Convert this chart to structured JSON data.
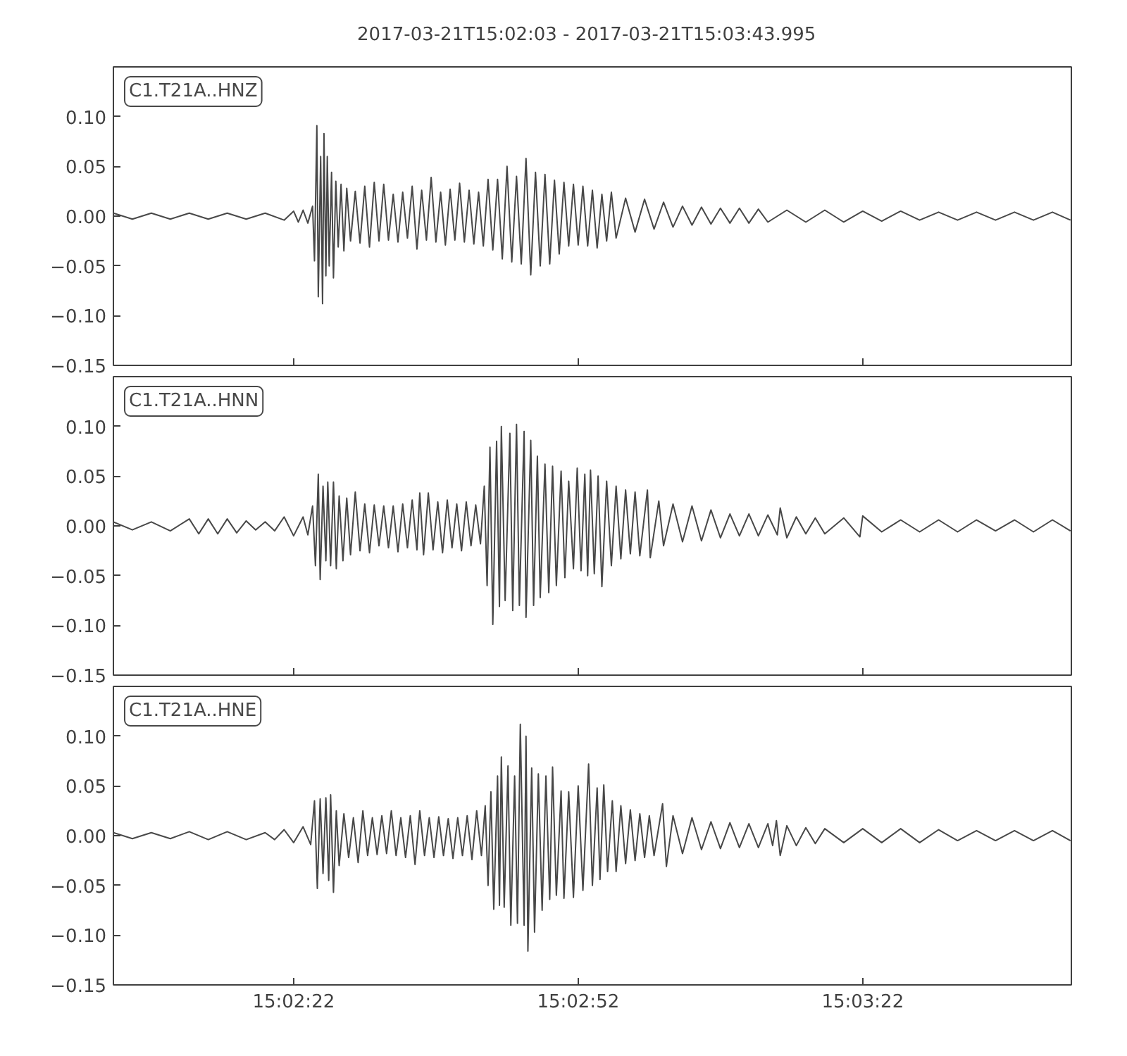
{
  "chart_data": [
    {
      "type": "line",
      "title": "2017-03-21T15:02:03  -  2017-03-21T15:03:43.995",
      "xlim": [
        "2017-03-21T15:02:03",
        "2017-03-21T15:03:43.995"
      ],
      "xticks": [
        {
          "value": "2017-03-21T15:02:22",
          "label": null
        },
        {
          "value": "2017-03-21T15:02:52",
          "label": null
        },
        {
          "value": "2017-03-21T15:03:22",
          "label": null
        }
      ],
      "ylim": [
        -0.15,
        0.15
      ],
      "yticks": [
        {
          "value": -0.15,
          "label": "−0.15"
        },
        {
          "value": -0.1,
          "label": "−0.10"
        },
        {
          "value": -0.05,
          "label": "−0.05"
        },
        {
          "value": 0,
          "label": "0.00"
        },
        {
          "value": 0.05,
          "label": "0.05"
        },
        {
          "value": 0.1,
          "label": "0.10"
        }
      ],
      "tick_labels": "y",
      "series": [
        {
          "name": "C1.T21A..HNZ",
          "color": "#484848",
          "x": [
            "2017-03-21T15:02:03",
            "2017-03-21T15:02:05",
            "2017-03-21T15:02:07",
            "2017-03-21T15:02:09",
            "2017-03-21T15:02:11",
            "2017-03-21T15:02:13",
            "2017-03-21T15:02:15",
            "2017-03-21T15:02:17",
            "2017-03-21T15:02:19",
            "2017-03-21T15:02:21",
            "2017-03-21T15:02:22",
            "2017-03-21T15:02:22.5",
            "2017-03-21T15:02:23",
            "2017-03-21T15:02:23.5",
            "2017-03-21T15:02:24",
            "2017-03-21T15:02:24.2",
            "2017-03-21T15:02:24.45",
            "2017-03-21T15:02:24.6",
            "2017-03-21T15:02:24.85",
            "2017-03-21T15:02:25.05",
            "2017-03-21T15:02:25.2",
            "2017-03-21T15:02:25.4",
            "2017-03-21T15:02:25.55",
            "2017-03-21T15:02:25.75",
            "2017-03-21T15:02:26",
            "2017-03-21T15:02:26.2",
            "2017-03-21T15:02:26.45",
            "2017-03-21T15:02:26.7",
            "2017-03-21T15:02:27",
            "2017-03-21T15:02:27.3",
            "2017-03-21T15:02:27.6",
            "2017-03-21T15:02:28",
            "2017-03-21T15:02:28.5",
            "2017-03-21T15:02:29",
            "2017-03-21T15:02:29.5",
            "2017-03-21T15:02:30",
            "2017-03-21T15:02:30.5",
            "2017-03-21T15:02:31",
            "2017-03-21T15:02:31.5",
            "2017-03-21T15:02:32",
            "2017-03-21T15:02:32.5",
            "2017-03-21T15:02:33",
            "2017-03-21T15:02:33.5",
            "2017-03-21T15:02:34",
            "2017-03-21T15:02:34.5",
            "2017-03-21T15:02:35",
            "2017-03-21T15:02:35.5",
            "2017-03-21T15:02:36",
            "2017-03-21T15:02:36.5",
            "2017-03-21T15:02:37",
            "2017-03-21T15:02:37.5",
            "2017-03-21T15:02:38",
            "2017-03-21T15:02:38.5",
            "2017-03-21T15:02:39",
            "2017-03-21T15:02:39.5",
            "2017-03-21T15:02:40",
            "2017-03-21T15:02:40.5",
            "2017-03-21T15:02:41",
            "2017-03-21T15:02:41.5",
            "2017-03-21T15:02:42",
            "2017-03-21T15:02:42.5",
            "2017-03-21T15:02:43",
            "2017-03-21T15:02:43.5",
            "2017-03-21T15:02:44",
            "2017-03-21T15:02:44.5",
            "2017-03-21T15:02:45",
            "2017-03-21T15:02:45.5",
            "2017-03-21T15:02:46",
            "2017-03-21T15:02:46.5",
            "2017-03-21T15:02:47",
            "2017-03-21T15:02:47.5",
            "2017-03-21T15:02:48",
            "2017-03-21T15:02:48.5",
            "2017-03-21T15:02:49",
            "2017-03-21T15:02:49.5",
            "2017-03-21T15:02:50",
            "2017-03-21T15:02:50.5",
            "2017-03-21T15:02:51",
            "2017-03-21T15:02:51.5",
            "2017-03-21T15:02:52",
            "2017-03-21T15:02:52.5",
            "2017-03-21T15:02:53",
            "2017-03-21T15:02:53.5",
            "2017-03-21T15:02:54",
            "2017-03-21T15:02:54.5",
            "2017-03-21T15:02:55",
            "2017-03-21T15:02:55.5",
            "2017-03-21T15:02:56",
            "2017-03-21T15:02:57",
            "2017-03-21T15:02:58",
            "2017-03-21T15:02:59",
            "2017-03-21T15:03:00",
            "2017-03-21T15:03:01",
            "2017-03-21T15:03:02",
            "2017-03-21T15:03:03",
            "2017-03-21T15:03:04",
            "2017-03-21T15:03:05",
            "2017-03-21T15:03:06",
            "2017-03-21T15:03:07",
            "2017-03-21T15:03:08",
            "2017-03-21T15:03:09",
            "2017-03-21T15:03:10",
            "2017-03-21T15:03:11",
            "2017-03-21T15:03:12",
            "2017-03-21T15:03:14",
            "2017-03-21T15:03:16",
            "2017-03-21T15:03:18",
            "2017-03-21T15:03:20",
            "2017-03-21T15:03:22",
            "2017-03-21T15:03:24",
            "2017-03-21T15:03:26",
            "2017-03-21T15:03:28",
            "2017-03-21T15:03:30",
            "2017-03-21T15:03:32",
            "2017-03-21T15:03:34",
            "2017-03-21T15:03:36",
            "2017-03-21T15:03:38",
            "2017-03-21T15:03:40",
            "2017-03-21T15:03:42",
            "2017-03-21T15:03:43.9"
          ],
          "values": [
            0.003,
            -0.003,
            0.003,
            -0.003,
            0.003,
            -0.003,
            0.003,
            -0.003,
            0.003,
            -0.004,
            0.005,
            -0.006,
            0.006,
            -0.007,
            0.01,
            -0.045,
            0.091,
            -0.081,
            0.06,
            -0.088,
            0.083,
            -0.06,
            0.06,
            -0.05,
            0.044,
            -0.062,
            0.035,
            -0.031,
            0.032,
            -0.035,
            0.028,
            -0.025,
            0.025,
            -0.027,
            0.03,
            -0.031,
            0.034,
            -0.025,
            0.032,
            -0.024,
            0.022,
            -0.026,
            0.024,
            -0.022,
            0.03,
            -0.033,
            0.026,
            -0.024,
            0.039,
            -0.026,
            0.024,
            -0.029,
            0.027,
            -0.024,
            0.033,
            -0.026,
            0.026,
            -0.028,
            0.024,
            -0.03,
            0.037,
            -0.034,
            0.037,
            -0.043,
            0.05,
            -0.046,
            0.04,
            -0.048,
            0.058,
            -0.059,
            0.044,
            -0.05,
            0.042,
            -0.048,
            0.036,
            -0.038,
            0.034,
            -0.03,
            0.032,
            -0.029,
            0.03,
            -0.03,
            0.026,
            -0.032,
            0.022,
            -0.025,
            0.024,
            -0.022,
            0.018,
            -0.016,
            0.017,
            -0.013,
            0.014,
            -0.011,
            0.01,
            -0.009,
            0.009,
            -0.008,
            0.008,
            -0.007,
            0.008,
            -0.007,
            0.007,
            -0.006,
            0.006,
            -0.006,
            0.006,
            -0.006,
            0.005,
            -0.005,
            0.005,
            -0.004,
            0.004,
            -0.004,
            0.004,
            -0.004,
            0.004,
            -0.004,
            0.004,
            -0.004
          ]
        }
      ]
    },
    {
      "type": "line",
      "xlim": [
        "2017-03-21T15:02:03",
        "2017-03-21T15:03:43.995"
      ],
      "xticks": [
        {
          "value": "2017-03-21T15:02:22",
          "label": null
        },
        {
          "value": "2017-03-21T15:02:52",
          "label": null
        },
        {
          "value": "2017-03-21T15:03:22",
          "label": null
        }
      ],
      "ylim": [
        -0.15,
        0.15
      ],
      "yticks": [
        {
          "value": -0.15,
          "label": "−0.15"
        },
        {
          "value": -0.1,
          "label": "−0.10"
        },
        {
          "value": -0.05,
          "label": "−0.05"
        },
        {
          "value": 0,
          "label": "0.00"
        },
        {
          "value": 0.05,
          "label": "0.05"
        },
        {
          "value": 0.1,
          "label": "0.10"
        }
      ],
      "tick_labels": "y",
      "series": [
        {
          "name": "C1.T21A..HNN",
          "color": "#484848",
          "x": [
            "2017-03-21T15:02:03",
            "2017-03-21T15:02:05",
            "2017-03-21T15:02:07",
            "2017-03-21T15:02:09",
            "2017-03-21T15:02:11",
            "2017-03-21T15:02:12",
            "2017-03-21T15:02:13",
            "2017-03-21T15:02:14",
            "2017-03-21T15:02:15",
            "2017-03-21T15:02:16",
            "2017-03-21T15:02:17",
            "2017-03-21T15:02:18",
            "2017-03-21T15:02:19",
            "2017-03-21T15:02:20",
            "2017-03-21T15:02:21",
            "2017-03-21T15:02:22",
            "2017-03-21T15:02:23",
            "2017-03-21T15:02:23.5",
            "2017-03-21T15:02:24",
            "2017-03-21T15:02:24.3",
            "2017-03-21T15:02:24.6",
            "2017-03-21T15:02:24.8",
            "2017-03-21T15:02:25.1",
            "2017-03-21T15:02:25.4",
            "2017-03-21T15:02:25.6",
            "2017-03-21T15:02:25.9",
            "2017-03-21T15:02:26.2",
            "2017-03-21T15:02:26.5",
            "2017-03-21T15:02:26.8",
            "2017-03-21T15:02:27.2",
            "2017-03-21T15:02:27.6",
            "2017-03-21T15:02:28",
            "2017-03-21T15:02:28.5",
            "2017-03-21T15:02:29",
            "2017-03-21T15:02:29.5",
            "2017-03-21T15:02:30",
            "2017-03-21T15:02:30.5",
            "2017-03-21T15:02:31",
            "2017-03-21T15:02:31.5",
            "2017-03-21T15:02:32",
            "2017-03-21T15:02:32.5",
            "2017-03-21T15:02:33",
            "2017-03-21T15:02:33.5",
            "2017-03-21T15:02:34",
            "2017-03-21T15:02:34.5",
            "2017-03-21T15:02:35",
            "2017-03-21T15:02:35.3",
            "2017-03-21T15:02:35.7",
            "2017-03-21T15:02:36.2",
            "2017-03-21T15:02:36.7",
            "2017-03-21T15:02:37.2",
            "2017-03-21T15:02:37.7",
            "2017-03-21T15:02:38.2",
            "2017-03-21T15:02:38.7",
            "2017-03-21T15:02:39.2",
            "2017-03-21T15:02:39.7",
            "2017-03-21T15:02:40.2",
            "2017-03-21T15:02:40.7",
            "2017-03-21T15:02:41.2",
            "2017-03-21T15:02:41.7",
            "2017-03-21T15:02:42.1",
            "2017-03-21T15:02:42.4",
            "2017-03-21T15:02:42.7",
            "2017-03-21T15:02:43",
            "2017-03-21T15:02:43.4",
            "2017-03-21T15:02:43.7",
            "2017-03-21T15:02:43.9",
            "2017-03-21T15:02:44.3",
            "2017-03-21T15:02:44.8",
            "2017-03-21T15:02:45.1",
            "2017-03-21T15:02:45.5",
            "2017-03-21T15:02:45.8",
            "2017-03-21T15:02:46.3",
            "2017-03-21T15:02:46.5",
            "2017-03-21T15:02:47",
            "2017-03-21T15:02:47.3",
            "2017-03-21T15:02:47.7",
            "2017-03-21T15:02:48",
            "2017-03-21T15:02:48.5",
            "2017-03-21T15:02:48.9",
            "2017-03-21T15:02:49.3",
            "2017-03-21T15:02:49.7",
            "2017-03-21T15:02:50.2",
            "2017-03-21T15:02:50.6",
            "2017-03-21T15:02:51",
            "2017-03-21T15:02:51.5",
            "2017-03-21T15:02:51.9",
            "2017-03-21T15:02:52.3",
            "2017-03-21T15:02:52.7",
            "2017-03-21T15:02:53",
            "2017-03-21T15:02:53.3",
            "2017-03-21T15:02:53.7",
            "2017-03-21T15:02:54.1",
            "2017-03-21T15:02:54.5",
            "2017-03-21T15:02:55",
            "2017-03-21T15:02:55.5",
            "2017-03-21T15:02:56",
            "2017-03-21T15:02:56.5",
            "2017-03-21T15:02:57",
            "2017-03-21T15:02:57.5",
            "2017-03-21T15:02:58",
            "2017-03-21T15:02:58.5",
            "2017-03-21T15:02:59.3",
            "2017-03-21T15:02:59.6",
            "2017-03-21T15:03:00.5",
            "2017-03-21T15:03:01",
            "2017-03-21T15:03:02",
            "2017-03-21T15:03:03",
            "2017-03-21T15:03:04",
            "2017-03-21T15:03:05",
            "2017-03-21T15:03:06",
            "2017-03-21T15:03:07",
            "2017-03-21T15:03:08",
            "2017-03-21T15:03:09",
            "2017-03-21T15:03:10",
            "2017-03-21T15:03:11",
            "2017-03-21T15:03:12",
            "2017-03-21T15:03:13",
            "2017-03-21T15:03:13.3",
            "2017-03-21T15:03:14",
            "2017-03-21T15:03:15",
            "2017-03-21T15:03:16",
            "2017-03-21T15:03:17",
            "2017-03-21T15:03:18",
            "2017-03-21T15:03:20",
            "2017-03-21T15:03:21.7",
            "2017-03-21T15:03:22",
            "2017-03-21T15:03:24",
            "2017-03-21T15:03:26",
            "2017-03-21T15:03:28",
            "2017-03-21T15:03:30",
            "2017-03-21T15:03:32",
            "2017-03-21T15:03:34",
            "2017-03-21T15:03:36",
            "2017-03-21T15:03:38",
            "2017-03-21T15:03:40",
            "2017-03-21T15:03:42",
            "2017-03-21T15:03:43.9"
          ],
          "values": [
            0.004,
            -0.004,
            0.004,
            -0.005,
            0.007,
            -0.008,
            0.007,
            -0.008,
            0.007,
            -0.007,
            0.005,
            -0.004,
            0.004,
            -0.005,
            0.009,
            -0.01,
            0.009,
            -0.009,
            0.02,
            -0.04,
            0.052,
            -0.054,
            0.04,
            -0.035,
            0.044,
            -0.04,
            0.044,
            -0.043,
            0.03,
            -0.035,
            0.028,
            -0.029,
            0.034,
            -0.025,
            0.022,
            -0.027,
            0.021,
            -0.02,
            0.02,
            -0.022,
            0.02,
            -0.026,
            0.022,
            -0.022,
            0.026,
            -0.024,
            0.033,
            -0.029,
            0.033,
            -0.024,
            0.024,
            -0.027,
            0.026,
            -0.022,
            0.022,
            -0.025,
            0.024,
            -0.02,
            0.021,
            -0.018,
            0.04,
            -0.06,
            0.079,
            -0.099,
            0.085,
            -0.081,
            0.1,
            -0.075,
            0.093,
            -0.085,
            0.102,
            -0.08,
            0.095,
            -0.092,
            0.086,
            -0.08,
            0.07,
            -0.072,
            0.062,
            -0.067,
            0.06,
            -0.06,
            0.055,
            -0.052,
            0.045,
            -0.043,
            0.058,
            -0.045,
            0.052,
            -0.05,
            0.056,
            -0.048,
            0.05,
            -0.061,
            0.045,
            -0.04,
            0.04,
            -0.033,
            0.036,
            -0.028,
            0.034,
            -0.03,
            0.036,
            -0.032,
            0.025,
            -0.02,
            0.022,
            -0.016,
            0.02,
            -0.015,
            0.016,
            -0.012,
            0.012,
            -0.01,
            0.012,
            -0.01,
            0.011,
            -0.009,
            0.018,
            -0.012,
            0.009,
            -0.008,
            0.008,
            -0.008,
            0.008,
            -0.011,
            0.01,
            -0.006,
            0.006,
            -0.006,
            0.006,
            -0.006,
            0.006,
            -0.005,
            0.006,
            -0.006,
            0.006,
            -0.005
          ]
        }
      ]
    },
    {
      "type": "line",
      "xlim": [
        "2017-03-21T15:02:03",
        "2017-03-21T15:03:43.995"
      ],
      "xticks": [
        {
          "value": "2017-03-21T15:02:22",
          "label": "15:02:22"
        },
        {
          "value": "2017-03-21T15:02:52",
          "label": "15:02:52"
        },
        {
          "value": "2017-03-21T15:03:22",
          "label": "15:03:22"
        }
      ],
      "ylim": [
        -0.15,
        0.15
      ],
      "yticks": [
        {
          "value": -0.15,
          "label": "−0.15"
        },
        {
          "value": -0.1,
          "label": "−0.10"
        },
        {
          "value": -0.05,
          "label": "−0.05"
        },
        {
          "value": 0,
          "label": "0.00"
        },
        {
          "value": 0.05,
          "label": "0.05"
        },
        {
          "value": 0.1,
          "label": "0.10"
        }
      ],
      "series": [
        {
          "name": "C1.T21A..HNE",
          "color": "#484848",
          "x": [
            "2017-03-21T15:02:03",
            "2017-03-21T15:02:05",
            "2017-03-21T15:02:07",
            "2017-03-21T15:02:09",
            "2017-03-21T15:02:11",
            "2017-03-21T15:02:13",
            "2017-03-21T15:02:15",
            "2017-03-21T15:02:17",
            "2017-03-21T15:02:19",
            "2017-03-21T15:02:20",
            "2017-03-21T15:02:21",
            "2017-03-21T15:02:22",
            "2017-03-21T15:02:23",
            "2017-03-21T15:02:23.8",
            "2017-03-21T15:02:24.2",
            "2017-03-21T15:02:24.5",
            "2017-03-21T15:02:24.8",
            "2017-03-21T15:02:25.1",
            "2017-03-21T15:02:25.4",
            "2017-03-21T15:02:25.7",
            "2017-03-21T15:02:25.9",
            "2017-03-21T15:02:26.2",
            "2017-03-21T15:02:26.5",
            "2017-03-21T15:02:26.8",
            "2017-03-21T15:02:27.3",
            "2017-03-21T15:02:27.8",
            "2017-03-21T15:02:28.3",
            "2017-03-21T15:02:28.8",
            "2017-03-21T15:02:29.3",
            "2017-03-21T15:02:29.8",
            "2017-03-21T15:02:30.3",
            "2017-03-21T15:02:30.8",
            "2017-03-21T15:02:31.3",
            "2017-03-21T15:02:31.8",
            "2017-03-21T15:02:32.3",
            "2017-03-21T15:02:32.8",
            "2017-03-21T15:02:33.3",
            "2017-03-21T15:02:33.8",
            "2017-03-21T15:02:34.3",
            "2017-03-21T15:02:34.8",
            "2017-03-21T15:02:35.3",
            "2017-03-21T15:02:35.8",
            "2017-03-21T15:02:36.3",
            "2017-03-21T15:02:36.8",
            "2017-03-21T15:02:37.3",
            "2017-03-21T15:02:37.8",
            "2017-03-21T15:02:38.3",
            "2017-03-21T15:02:38.8",
            "2017-03-21T15:02:39.3",
            "2017-03-21T15:02:39.8",
            "2017-03-21T15:02:40.3",
            "2017-03-21T15:02:40.8",
            "2017-03-21T15:02:41.3",
            "2017-03-21T15:02:41.8",
            "2017-03-21T15:02:42.2",
            "2017-03-21T15:02:42.5",
            "2017-03-21T15:02:42.8",
            "2017-03-21T15:02:43.1",
            "2017-03-21T15:02:43.5",
            "2017-03-21T15:02:43.7",
            "2017-03-21T15:02:43.9",
            "2017-03-21T15:02:44.2",
            "2017-03-21T15:02:44.6",
            "2017-03-21T15:02:44.9",
            "2017-03-21T15:02:45.3",
            "2017-03-21T15:02:45.6",
            "2017-03-21T15:02:45.9",
            "2017-03-21T15:02:46.3",
            "2017-03-21T15:02:46.5",
            "2017-03-21T15:02:46.7",
            "2017-03-21T15:02:47.1",
            "2017-03-21T15:02:47.4",
            "2017-03-21T15:02:47.8",
            "2017-03-21T15:02:48.2",
            "2017-03-21T15:02:48.6",
            "2017-03-21T15:02:49",
            "2017-03-21T15:02:49.3",
            "2017-03-21T15:02:49.7",
            "2017-03-21T15:02:50.2",
            "2017-03-21T15:02:50.5",
            "2017-03-21T15:02:51",
            "2017-03-21T15:02:51.5",
            "2017-03-21T15:02:52",
            "2017-03-21T15:02:52.5",
            "2017-03-21T15:02:53.1",
            "2017-03-21T15:02:53.5",
            "2017-03-21T15:02:54",
            "2017-03-21T15:02:54.3",
            "2017-03-21T15:02:54.7",
            "2017-03-21T15:02:55.1",
            "2017-03-21T15:02:55.6",
            "2017-03-21T15:02:56",
            "2017-03-21T15:02:56.5",
            "2017-03-21T15:02:57",
            "2017-03-21T15:02:57.5",
            "2017-03-21T15:02:58",
            "2017-03-21T15:02:58.5",
            "2017-03-21T15:02:59",
            "2017-03-21T15:02:59.5",
            "2017-03-21T15:03:00",
            "2017-03-21T15:03:00.9",
            "2017-03-21T15:03:01.3",
            "2017-03-21T15:03:02",
            "2017-03-21T15:03:03",
            "2017-03-21T15:03:04",
            "2017-03-21T15:03:05",
            "2017-03-21T15:03:06",
            "2017-03-21T15:03:07",
            "2017-03-21T15:03:08",
            "2017-03-21T15:03:09",
            "2017-03-21T15:03:10",
            "2017-03-21T15:03:11",
            "2017-03-21T15:03:12",
            "2017-03-21T15:03:12.5",
            "2017-03-21T15:03:12.9",
            "2017-03-21T15:03:13.3",
            "2017-03-21T15:03:14",
            "2017-03-21T15:03:15",
            "2017-03-21T15:03:16",
            "2017-03-21T15:03:17",
            "2017-03-21T15:03:18",
            "2017-03-21T15:03:20",
            "2017-03-21T15:03:22",
            "2017-03-21T15:03:24",
            "2017-03-21T15:03:26",
            "2017-03-21T15:03:28",
            "2017-03-21T15:03:30",
            "2017-03-21T15:03:32",
            "2017-03-21T15:03:34",
            "2017-03-21T15:03:36",
            "2017-03-21T15:03:38",
            "2017-03-21T15:03:40",
            "2017-03-21T15:03:42",
            "2017-03-21T15:03:43.9"
          ],
          "values": [
            0.003,
            -0.003,
            0.003,
            -0.003,
            0.004,
            -0.004,
            0.004,
            -0.004,
            0.003,
            -0.004,
            0.006,
            -0.007,
            0.009,
            -0.009,
            0.035,
            -0.053,
            0.037,
            -0.038,
            0.038,
            -0.045,
            0.041,
            -0.057,
            0.025,
            -0.03,
            0.022,
            -0.022,
            0.018,
            -0.027,
            0.025,
            -0.02,
            0.018,
            -0.019,
            0.02,
            -0.018,
            0.025,
            -0.02,
            0.018,
            -0.022,
            0.02,
            -0.029,
            0.025,
            -0.02,
            0.018,
            -0.022,
            0.019,
            -0.02,
            0.017,
            -0.023,
            0.018,
            -0.02,
            0.02,
            -0.024,
            0.025,
            -0.02,
            0.03,
            -0.05,
            0.044,
            -0.074,
            0.06,
            -0.07,
            0.079,
            -0.072,
            0.07,
            -0.09,
            0.06,
            -0.088,
            0.112,
            -0.09,
            0.1,
            -0.116,
            0.068,
            -0.097,
            0.062,
            -0.075,
            0.06,
            -0.064,
            0.069,
            -0.06,
            0.045,
            -0.063,
            0.044,
            -0.062,
            0.05,
            -0.055,
            0.072,
            -0.05,
            0.048,
            -0.044,
            0.051,
            -0.036,
            0.035,
            -0.036,
            0.03,
            -0.028,
            0.026,
            -0.025,
            0.022,
            -0.022,
            0.02,
            -0.02,
            0.032,
            -0.031,
            0.02,
            -0.018,
            0.018,
            -0.014,
            0.014,
            -0.013,
            0.013,
            -0.012,
            0.012,
            -0.012,
            0.012,
            -0.01,
            0.015,
            -0.02,
            0.01,
            -0.01,
            0.008,
            -0.008,
            0.007,
            -0.007,
            0.007,
            -0.007,
            0.007,
            -0.007,
            0.006,
            -0.005,
            0.005,
            -0.005,
            0.005,
            -0.005,
            0.005,
            -0.005
          ]
        }
      ]
    }
  ]
}
